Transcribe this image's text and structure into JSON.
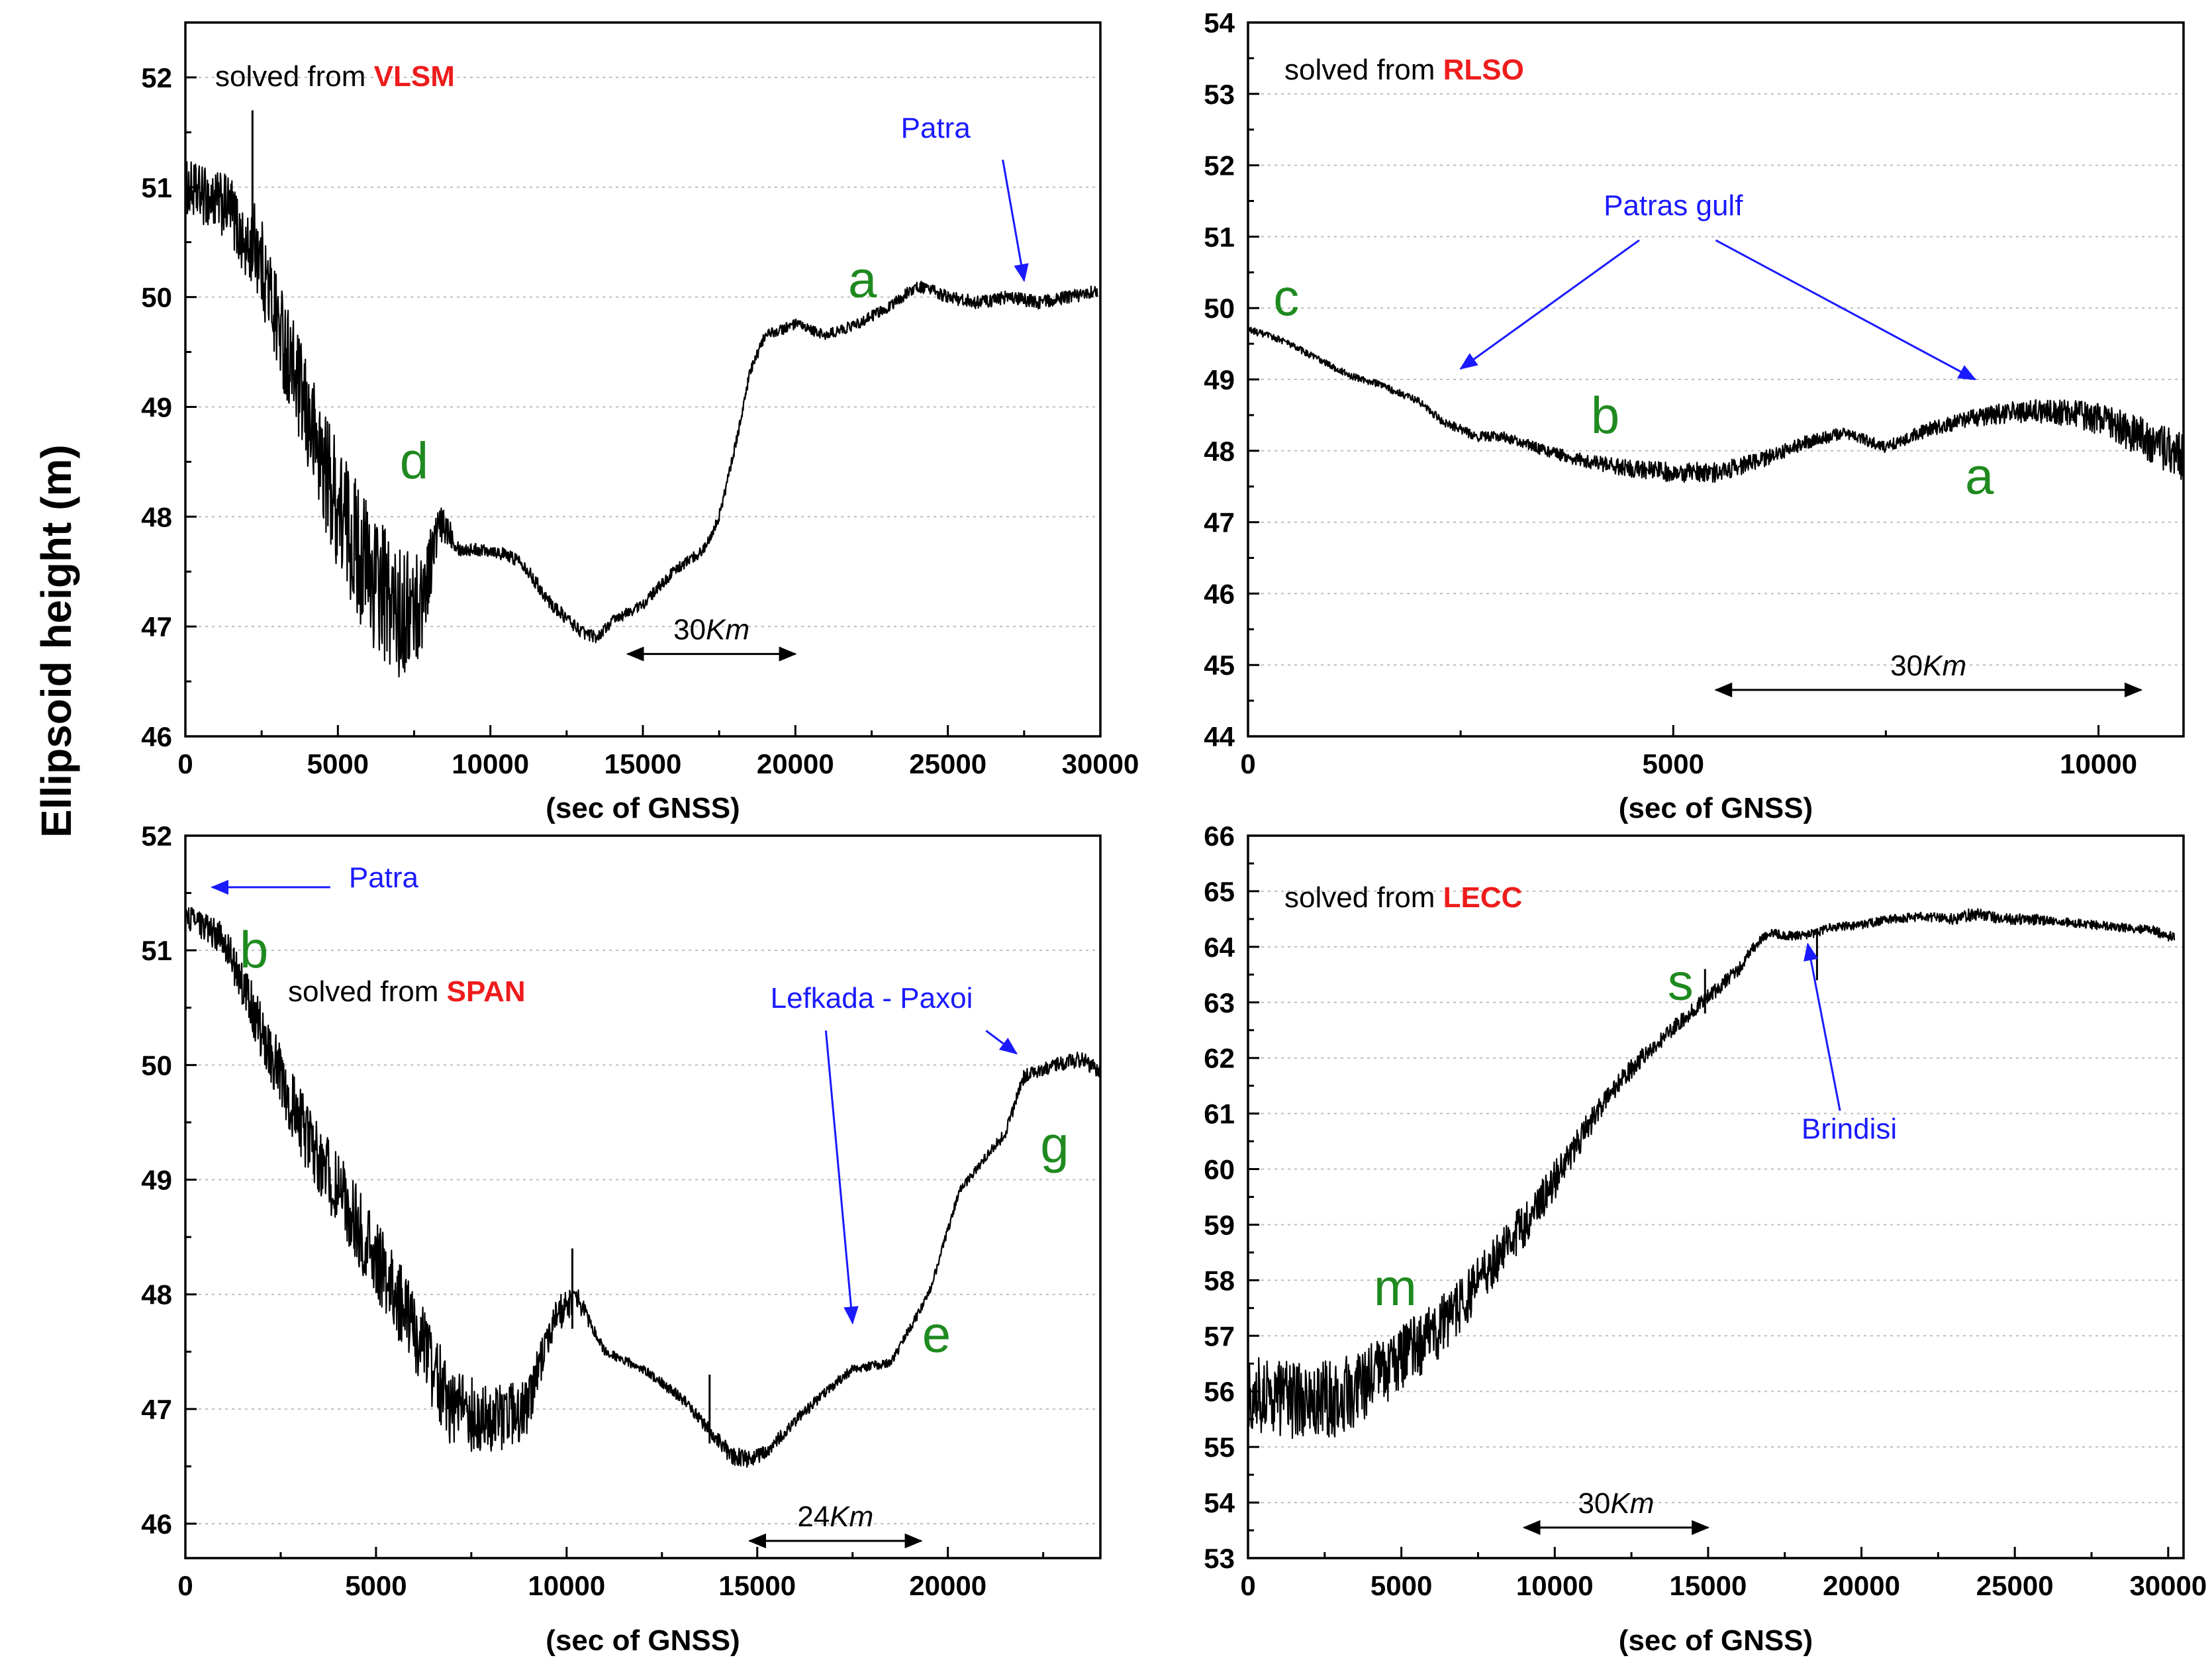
{
  "figure": {
    "ylabel": "Ellipsoid height (m)"
  },
  "colors": {
    "trace": "#000000",
    "annotation_blue": "#1a1aff",
    "label_green": "#1f8a1f",
    "station_red": "#ee1c1c",
    "grid": "#bdbdbd"
  },
  "chart_data": [
    {
      "id": "vlsm",
      "type": "line",
      "station_prefix": "solved from ",
      "station": "VLSM",
      "xlabel": "(sec of GNSS)",
      "xlim": [
        0,
        30000
      ],
      "ylim": [
        46,
        52.5
      ],
      "xticks": [
        0,
        5000,
        10000,
        15000,
        20000,
        25000,
        30000
      ],
      "yticks": [
        46,
        47,
        48,
        49,
        50,
        51,
        52
      ],
      "x_end": 29900,
      "series": [
        {
          "name": "VLSM height",
          "x": [
            0,
            1500,
            2000,
            2300,
            3000,
            4000,
            5000,
            6000,
            7000,
            7700,
            8300,
            8600,
            9000,
            10000,
            11000,
            12000,
            13000,
            13500,
            14000,
            15000,
            16000,
            17000,
            17500,
            18000,
            18500,
            19000,
            20000,
            21000,
            22000,
            23000,
            24000,
            25000,
            26000,
            27000,
            28000,
            29000,
            29900
          ],
          "y": [
            51.0,
            50.8,
            50.4,
            50.5,
            49.8,
            48.9,
            48.1,
            47.5,
            47.1,
            47.2,
            47.9,
            47.9,
            47.7,
            47.7,
            47.6,
            47.2,
            46.95,
            46.9,
            47.05,
            47.2,
            47.5,
            47.7,
            48.0,
            48.6,
            49.3,
            49.65,
            49.75,
            49.65,
            49.75,
            49.9,
            50.1,
            50.0,
            49.95,
            50.0,
            49.95,
            50.0,
            50.05
          ],
          "noise": [
            0.25,
            0.3,
            0.3,
            0.4,
            0.45,
            0.5,
            0.6,
            0.65,
            0.6,
            0.5,
            0.2,
            0.15,
            0.06,
            0.06,
            0.06,
            0.06,
            0.06,
            0.05,
            0.05,
            0.05,
            0.05,
            0.05,
            0.05,
            0.05,
            0.05,
            0.05,
            0.05,
            0.05,
            0.05,
            0.05,
            0.06,
            0.06,
            0.06,
            0.06,
            0.06,
            0.06,
            0.06
          ]
        }
      ],
      "spikes": [
        {
          "x": 2200,
          "y0": 50.5,
          "y1": 51.7
        }
      ],
      "annotations": [
        {
          "text": "Patra",
          "x": 24600,
          "y": 51.45,
          "color": "blue",
          "arrow": [
            26800,
            51.25,
            27500,
            50.15
          ]
        },
        {
          "text": "a",
          "x": 22200,
          "y": 50.0,
          "color": "green"
        },
        {
          "text": "d",
          "x": 7500,
          "y": 48.35,
          "color": "green"
        }
      ],
      "scale_bar": {
        "label": "30",
        "unit": "Km",
        "x0": 14500,
        "x1": 20000,
        "y": 46.75
      }
    },
    {
      "id": "rlso",
      "type": "line",
      "station_prefix": "solved from ",
      "station": "RLSO",
      "xlabel": "(sec of GNSS)",
      "xlim": [
        0,
        11000
      ],
      "ylim": [
        44,
        54
      ],
      "xticks": [
        0,
        5000,
        10000
      ],
      "yticks": [
        44,
        45,
        46,
        47,
        48,
        49,
        50,
        51,
        52,
        53,
        54
      ],
      "x_end": 11000,
      "series": [
        {
          "name": "RLSO height",
          "x": [
            0,
            400,
            800,
            1200,
            1500,
            2000,
            2300,
            2700,
            3000,
            3500,
            4000,
            4500,
            5000,
            5500,
            6000,
            6500,
            7000,
            7500,
            8000,
            8500,
            9000,
            9500,
            10000,
            10500,
            11000
          ],
          "y": [
            49.7,
            49.55,
            49.3,
            49.05,
            48.95,
            48.7,
            48.4,
            48.2,
            48.2,
            48.0,
            47.85,
            47.75,
            47.7,
            47.7,
            47.85,
            48.1,
            48.25,
            48.05,
            48.3,
            48.45,
            48.55,
            48.55,
            48.45,
            48.2,
            47.9
          ],
          "noise": [
            0.05,
            0.05,
            0.05,
            0.05,
            0.05,
            0.05,
            0.06,
            0.07,
            0.07,
            0.08,
            0.1,
            0.12,
            0.14,
            0.14,
            0.12,
            0.1,
            0.08,
            0.08,
            0.1,
            0.12,
            0.15,
            0.18,
            0.22,
            0.28,
            0.35
          ]
        }
      ],
      "spikes": [],
      "annotations": [
        {
          "text": "Patras gulf",
          "x": 5000,
          "y": 51.3,
          "color": "blue",
          "arrows": [
            [
              4600,
              50.95,
              2500,
              49.15
            ],
            [
              5500,
              50.95,
              8550,
              49.0
            ]
          ]
        },
        {
          "text": "c",
          "x": 450,
          "y": 49.9,
          "color": "green"
        },
        {
          "text": "b",
          "x": 4200,
          "y": 48.25,
          "color": "green"
        },
        {
          "text": "a",
          "x": 8600,
          "y": 47.4,
          "color": "green"
        }
      ],
      "scale_bar": {
        "label": "30",
        "unit": "Km",
        "x0": 5500,
        "x1": 10500,
        "y": 44.65
      }
    },
    {
      "id": "span",
      "type": "line",
      "station_prefix": "solved from ",
      "station": "SPAN",
      "xlabel": "(sec of GNSS)",
      "xlim": [
        0,
        24000
      ],
      "ylim": [
        45.7,
        52
      ],
      "xticks": [
        0,
        5000,
        10000,
        15000,
        20000
      ],
      "yticks": [
        46,
        47,
        48,
        49,
        50,
        51,
        52
      ],
      "x_end": 24000,
      "series": [
        {
          "name": "SPAN height",
          "x": [
            0,
            500,
            1000,
            1500,
            2000,
            3000,
            4000,
            5000,
            6000,
            7000,
            8000,
            9000,
            9300,
            9700,
            10000,
            10300,
            10700,
            11000,
            12000,
            13000,
            13800,
            14300,
            14800,
            15300,
            16000,
            16800,
            17500,
            18500,
            19500,
            20300,
            21000,
            21500,
            22000,
            22800,
            23500,
            24000
          ],
          "y": [
            51.3,
            51.2,
            51.1,
            50.7,
            50.3,
            49.5,
            48.9,
            48.3,
            47.7,
            47.0,
            46.9,
            47.0,
            47.4,
            47.8,
            47.9,
            47.95,
            47.7,
            47.5,
            47.35,
            47.1,
            46.8,
            46.6,
            46.55,
            46.65,
            46.9,
            47.15,
            47.35,
            47.4,
            48.0,
            48.9,
            49.2,
            49.4,
            49.9,
            50.0,
            50.05,
            49.95
          ],
          "noise": [
            0.1,
            0.12,
            0.15,
            0.2,
            0.25,
            0.3,
            0.35,
            0.35,
            0.35,
            0.35,
            0.3,
            0.25,
            0.2,
            0.15,
            0.15,
            0.1,
            0.05,
            0.04,
            0.04,
            0.05,
            0.06,
            0.08,
            0.08,
            0.06,
            0.05,
            0.05,
            0.04,
            0.04,
            0.04,
            0.04,
            0.04,
            0.05,
            0.06,
            0.06,
            0.07,
            0.07
          ]
        }
      ],
      "spikes": [
        {
          "x": 10150,
          "y0": 47.7,
          "y1": 48.4
        },
        {
          "x": 13750,
          "y0": 46.7,
          "y1": 47.3
        }
      ],
      "annotations": [
        {
          "text": "Patra",
          "x": 5200,
          "y": 51.55,
          "color": "blue",
          "arrow": [
            3800,
            51.55,
            700,
            51.55
          ]
        },
        {
          "text": "b",
          "x": 1800,
          "y": 50.85,
          "color": "green"
        },
        {
          "text": "Lefkada - Paxoi",
          "x": 18000,
          "y": 50.5,
          "color": "blue",
          "arrows": [
            [
              16800,
              50.3,
              17500,
              47.75
            ],
            [
              21000,
              50.3,
              21800,
              50.1
            ]
          ]
        },
        {
          "text": "g",
          "x": 22800,
          "y": 49.15,
          "color": "green"
        },
        {
          "text": "e",
          "x": 19700,
          "y": 47.5,
          "color": "green"
        }
      ],
      "scale_bar": {
        "label": "24",
        "unit": "Km",
        "x0": 14800,
        "x1": 19300,
        "y": 45.85
      }
    },
    {
      "id": "lecc",
      "type": "line",
      "station_prefix": "solved from ",
      "station": "LECC",
      "xlabel": "(sec of GNSS)",
      "xlim": [
        0,
        30500
      ],
      "ylim": [
        53,
        66
      ],
      "xticks": [
        0,
        5000,
        10000,
        15000,
        20000,
        25000,
        30000
      ],
      "yticks": [
        53,
        54,
        55,
        56,
        57,
        58,
        59,
        60,
        61,
        62,
        63,
        64,
        65,
        66
      ],
      "x_end": 30200,
      "series": [
        {
          "name": "LECC height",
          "x": [
            0,
            1000,
            2000,
            3000,
            4000,
            5000,
            6000,
            7000,
            8000,
            9000,
            10000,
            11000,
            12000,
            13000,
            14000,
            15000,
            16000,
            16500,
            17000,
            17500,
            18000,
            18500,
            19000,
            20000,
            21000,
            22000,
            23000,
            23700,
            24500,
            25500,
            26500,
            27500,
            28500,
            29500,
            30200
          ],
          "y": [
            56.0,
            55.9,
            55.8,
            55.9,
            56.2,
            56.6,
            57.0,
            57.6,
            58.3,
            59.0,
            59.8,
            60.7,
            61.5,
            62.1,
            62.6,
            63.1,
            63.6,
            64.0,
            64.25,
            64.2,
            64.2,
            64.25,
            64.35,
            64.4,
            64.5,
            64.55,
            64.5,
            64.6,
            64.5,
            64.5,
            64.45,
            64.4,
            64.35,
            64.3,
            64.15
          ],
          "noise": [
            0.7,
            0.7,
            0.7,
            0.7,
            0.65,
            0.6,
            0.55,
            0.5,
            0.45,
            0.4,
            0.35,
            0.25,
            0.2,
            0.15,
            0.15,
            0.15,
            0.12,
            0.1,
            0.08,
            0.08,
            0.08,
            0.08,
            0.08,
            0.08,
            0.08,
            0.08,
            0.1,
            0.12,
            0.1,
            0.1,
            0.08,
            0.08,
            0.08,
            0.08,
            0.1
          ]
        }
      ],
      "spikes": [
        {
          "x": 14900,
          "y0": 62.8,
          "y1": 63.6
        },
        {
          "x": 18550,
          "y0": 63.4,
          "y1": 64.3
        }
      ],
      "annotations": [
        {
          "text": "s",
          "x": 14100,
          "y": 63.05,
          "color": "green"
        },
        {
          "text": "Brindisi",
          "x": 19600,
          "y": 60.55,
          "color": "blue",
          "arrow": [
            19300,
            61.05,
            18250,
            64.05
          ]
        },
        {
          "text": "m",
          "x": 4800,
          "y": 57.55,
          "color": "green"
        }
      ],
      "scale_bar": {
        "label": "30",
        "unit": "Km",
        "x0": 9000,
        "x1": 15000,
        "y": 53.55
      }
    }
  ]
}
